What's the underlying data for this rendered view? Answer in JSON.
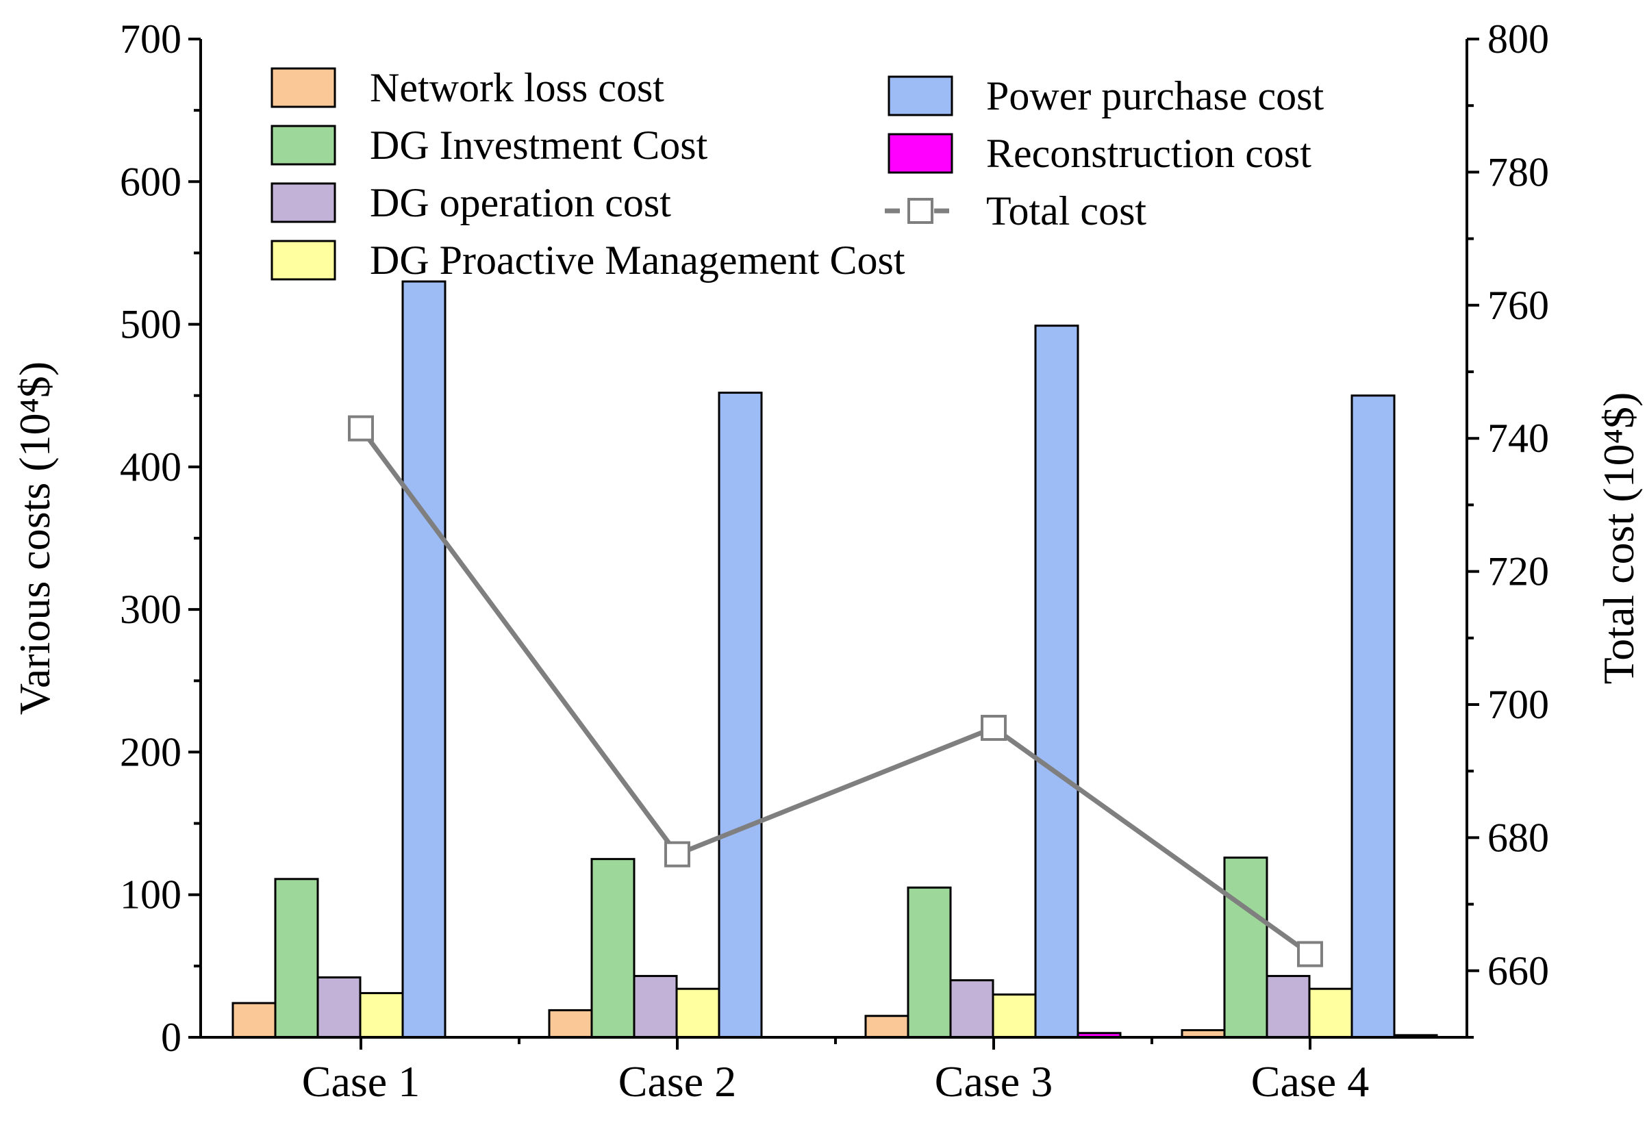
{
  "chart_data": {
    "type": "bar",
    "categories": [
      "Case 1",
      "Case 2",
      "Case 3",
      "Case 4"
    ],
    "series": [
      {
        "name": "Network loss cost",
        "color": "#FAC797",
        "values": [
          24,
          19,
          15,
          5
        ]
      },
      {
        "name": "DG Investment Cost",
        "color": "#9DD89A",
        "values": [
          111,
          125,
          105,
          126
        ]
      },
      {
        "name": "DG operation cost",
        "color": "#C3B2D8",
        "values": [
          42,
          43,
          40,
          43
        ]
      },
      {
        "name": "DG Proactive Management Cost",
        "color": "#FFFFA0",
        "values": [
          31,
          34,
          30,
          34
        ]
      },
      {
        "name": "Power purchase cost",
        "color": "#9DBBF4",
        "values": [
          530,
          452,
          499,
          450
        ]
      },
      {
        "name": "Reconstruction cost",
        "color": "#FF00FF",
        "values": [
          0,
          0,
          3,
          1.5
        ]
      }
    ],
    "line_series": {
      "name": "Total cost",
      "color": "#7F7F7F",
      "axis": "right",
      "values": [
        741.5,
        677.5,
        696.5,
        662.5
      ]
    },
    "ylabel": "Various costs (10⁴$)",
    "ylim": [
      0,
      700
    ],
    "yticks": [
      "0",
      "100",
      "200",
      "300",
      "400",
      "500",
      "600",
      "700"
    ],
    "y2label": "Total cost (10⁴$)",
    "y2lim": [
      650,
      800
    ],
    "y2ticks": [
      "660",
      "680",
      "700",
      "720",
      "740",
      "760",
      "780",
      "800"
    ],
    "grid": false,
    "legend_position": "top"
  }
}
